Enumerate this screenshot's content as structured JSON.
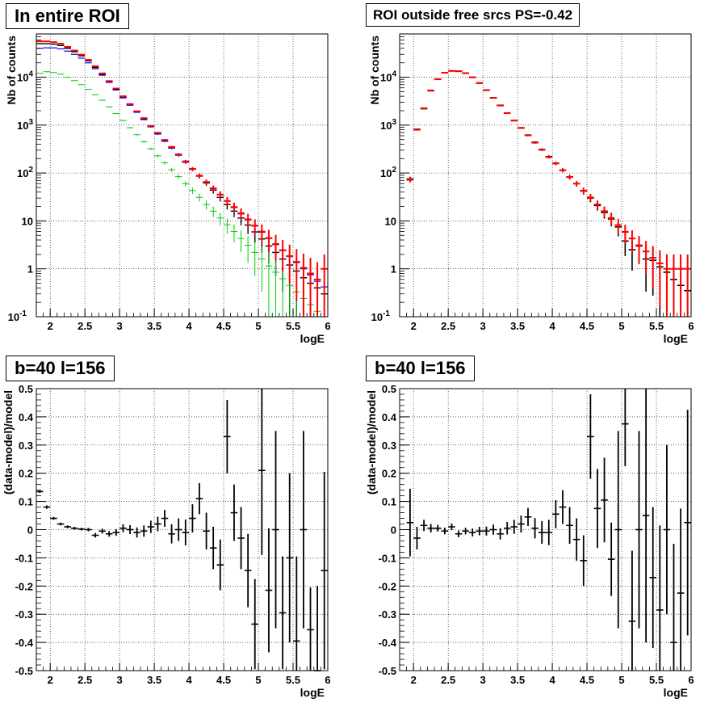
{
  "chart_data": [
    {
      "type": "scatter",
      "title": "In entire ROI",
      "xlabel": "logE",
      "ylabel": "Nb of counts",
      "xlim": [
        1.8,
        6.0
      ],
      "ylim": [
        0.1,
        80000
      ],
      "yscale": "log",
      "grid": true,
      "x_ticks": [
        "2",
        "2.5",
        "3",
        "3.5",
        "4",
        "4.5",
        "5",
        "5.5",
        "6"
      ],
      "y_ticks": [
        "10^-1",
        "1",
        "10",
        "10^2",
        "10^3",
        "10^4"
      ],
      "colors": {
        "data": "#000000",
        "model": "#ff0000",
        "blue": "#0000ff",
        "green": "#00cc00"
      },
      "x": [
        1.85,
        1.95,
        2.05,
        2.15,
        2.25,
        2.35,
        2.45,
        2.55,
        2.65,
        2.75,
        2.85,
        2.95,
        3.05,
        3.15,
        3.25,
        3.35,
        3.45,
        3.55,
        3.65,
        3.75,
        3.85,
        3.95,
        4.05,
        4.15,
        4.25,
        4.35,
        4.45,
        4.55,
        4.65,
        4.75,
        4.85,
        4.95,
        5.05,
        5.15,
        5.25,
        5.35,
        5.45,
        5.55,
        5.65,
        5.75,
        5.85,
        5.95
      ],
      "series": [
        {
          "values": [
            50000,
            50000,
            49000,
            46000,
            40000,
            34000,
            28000,
            22000,
            16000,
            11500,
            8000,
            5600,
            3900,
            2700,
            1900,
            1350,
            950,
            680,
            480,
            340,
            240,
            170,
            120,
            86,
            62,
            44,
            31,
            22,
            16,
            11.5,
            8.2,
            5.9,
            4.2,
            3.0,
            2.2,
            1.6,
            1.2,
            0.9,
            0.65,
            0.5,
            0.4,
            0.3
          ]
        },
        {
          "values": [
            40000,
            41000,
            41000,
            39000,
            35000,
            30000,
            25000,
            20000,
            15000,
            11000,
            7800,
            5400,
            3700,
            2600,
            1850,
            1300,
            920,
            650,
            460,
            330,
            235,
            168,
            120,
            87,
            64,
            47,
            35,
            26,
            19,
            14,
            10.5,
            7.8,
            5.8,
            4.3,
            3.2,
            2.4,
            1.8,
            1.35,
            1.0,
            0.75,
            0.55,
            0.42
          ]
        },
        {
          "values": [
            12000,
            13000,
            12500,
            11500,
            10000,
            8500,
            7000,
            5600,
            4300,
            3300,
            2400,
            1750,
            1250,
            880,
            630,
            450,
            320,
            228,
            163,
            117,
            84,
            60,
            43,
            31,
            22,
            16,
            11.5,
            8.3,
            6.0,
            4.3,
            3.1,
            2.2,
            1.6,
            1.15,
            0.85,
            0.62,
            0.45,
            0.33,
            0.24,
            0.18,
            0.13,
            0.1
          ]
        },
        {
          "values": [
            56000,
            56000,
            54000,
            50000,
            43000,
            36000,
            29500,
            23000,
            17000,
            12000,
            8300,
            5800,
            4000,
            2750,
            1950,
            1400,
            960,
            690,
            490,
            350,
            245,
            175,
            122,
            88,
            65,
            48,
            35.5,
            26,
            19.5,
            14.5,
            10.8,
            8.0,
            6.0,
            4.4,
            3.3,
            2.45,
            1.85,
            1.4,
            1.05,
            0.8,
            0.6,
            1.0
          ]
        }
      ]
    },
    {
      "type": "scatter",
      "title": "ROI outside free srcs PS=-0.42",
      "xlabel": "logE",
      "ylabel": "Nb of counts",
      "xlim": [
        1.8,
        6.0
      ],
      "ylim": [
        0.1,
        80000
      ],
      "yscale": "log",
      "grid": true,
      "x_ticks": [
        "2",
        "2.5",
        "3",
        "3.5",
        "4",
        "4.5",
        "5",
        "5.5",
        "6"
      ],
      "y_ticks": [
        "10^-1",
        "1",
        "10",
        "10^2",
        "10^3",
        "10^4"
      ],
      "colors": {
        "data": "#000000",
        "model": "#ff0000"
      },
      "x": [
        1.95,
        2.05,
        2.15,
        2.25,
        2.35,
        2.45,
        2.55,
        2.65,
        2.75,
        2.85,
        2.95,
        3.05,
        3.15,
        3.25,
        3.35,
        3.45,
        3.55,
        3.65,
        3.75,
        3.85,
        3.95,
        4.05,
        4.15,
        4.25,
        4.35,
        4.45,
        4.55,
        4.65,
        4.75,
        4.85,
        4.95,
        5.05,
        5.15,
        5.25,
        5.35,
        5.45,
        5.55,
        5.65,
        5.75,
        5.85,
        5.95
      ],
      "series": [
        {
          "values": [
            75,
            820,
            2200,
            5200,
            9000,
            12300,
            13600,
            13400,
            12200,
            10000,
            7600,
            5400,
            3750,
            2600,
            1800,
            1250,
            880,
            620,
            440,
            310,
            220,
            160,
            115,
            82,
            60,
            42,
            30,
            21,
            15,
            11,
            7.5,
            3.8,
            2.5,
            3.0,
            1.6,
            1.5,
            1.1,
            0.85,
            0.6,
            0.45,
            0.35
          ]
        },
        {
          "values": [
            72,
            800,
            2250,
            5300,
            9100,
            12400,
            13500,
            13300,
            12100,
            9900,
            7500,
            5350,
            3700,
            2560,
            1780,
            1240,
            870,
            610,
            430,
            305,
            215,
            158,
            114,
            83,
            60,
            43,
            31,
            22,
            16,
            11.5,
            8.2,
            5.9,
            4.3,
            3.1,
            2.3,
            1.7,
            1.3,
            1.0,
            1.0,
            1.0,
            1.0
          ]
        }
      ]
    },
    {
      "type": "scatter",
      "title": "b=40 l=156",
      "xlabel": "logE",
      "ylabel": "(data-model)/model",
      "xlim": [
        1.8,
        6.0
      ],
      "ylim": [
        -0.5,
        0.5
      ],
      "grid": true,
      "x_ticks": [
        "2",
        "2.5",
        "3",
        "3.5",
        "4",
        "4.5",
        "5",
        "5.5",
        "6"
      ],
      "y_ticks": [
        "-0.5",
        "-0.4",
        "-0.3",
        "-0.2",
        "-0.1",
        "0",
        "0.1",
        "0.2",
        "0.3",
        "0.4",
        "0.5"
      ],
      "colors": {
        "data": "#000000"
      },
      "x": [
        1.85,
        1.95,
        2.05,
        2.15,
        2.25,
        2.35,
        2.45,
        2.55,
        2.65,
        2.75,
        2.85,
        2.95,
        3.05,
        3.15,
        3.25,
        3.35,
        3.45,
        3.55,
        3.65,
        3.75,
        3.85,
        3.95,
        4.05,
        4.15,
        4.25,
        4.35,
        4.45,
        4.55,
        4.65,
        4.75,
        4.85,
        4.95,
        5.05,
        5.15,
        5.25,
        5.35,
        5.45,
        5.55,
        5.65,
        5.75,
        5.85,
        5.95
      ],
      "values": [
        0.135,
        0.08,
        0.04,
        0.02,
        0.01,
        0.005,
        0.002,
        0.0,
        -0.02,
        -0.005,
        -0.015,
        -0.01,
        0.005,
        0.0,
        -0.01,
        -0.005,
        0.01,
        0.02,
        0.04,
        -0.015,
        0.0,
        -0.01,
        0.04,
        0.11,
        -0.005,
        -0.065,
        -0.125,
        0.33,
        0.06,
        -0.03,
        -0.145,
        -0.335,
        0.21,
        -0.215,
        0.0,
        -0.295,
        -0.1,
        -0.395,
        0.0,
        -0.355,
        -0.5,
        -0.145
      ],
      "errors": [
        0.005,
        0.006,
        0.005,
        0.005,
        0.005,
        0.005,
        0.005,
        0.006,
        0.008,
        0.009,
        0.01,
        0.012,
        0.014,
        0.016,
        0.018,
        0.02,
        0.022,
        0.026,
        0.03,
        0.034,
        0.04,
        0.046,
        0.05,
        0.055,
        0.065,
        0.075,
        0.09,
        0.13,
        0.1,
        0.11,
        0.13,
        0.16,
        0.3,
        0.22,
        0.35,
        0.2,
        0.3,
        0.3,
        0.35,
        0.15,
        0.3,
        0.35
      ]
    },
    {
      "type": "scatter",
      "title": "b=40 l=156",
      "xlabel": "logE",
      "ylabel": "(data-model)/model",
      "xlim": [
        1.8,
        6.0
      ],
      "ylim": [
        -0.5,
        0.5
      ],
      "grid": true,
      "x_ticks": [
        "2",
        "2.5",
        "3",
        "3.5",
        "4",
        "4.5",
        "5",
        "5.5",
        "6"
      ],
      "y_ticks": [
        "-0.5",
        "-0.4",
        "-0.3",
        "-0.2",
        "-0.1",
        "0",
        "0.1",
        "0.2",
        "0.3",
        "0.4",
        "0.5"
      ],
      "colors": {
        "data": "#000000"
      },
      "x": [
        1.95,
        2.05,
        2.15,
        2.25,
        2.35,
        2.45,
        2.55,
        2.65,
        2.75,
        2.85,
        2.95,
        3.05,
        3.15,
        3.25,
        3.35,
        3.45,
        3.55,
        3.65,
        3.75,
        3.85,
        3.95,
        4.05,
        4.15,
        4.25,
        4.35,
        4.45,
        4.55,
        4.65,
        4.75,
        4.85,
        4.95,
        5.05,
        5.15,
        5.25,
        5.35,
        5.45,
        5.55,
        5.65,
        5.75,
        5.85,
        5.95
      ],
      "values": [
        0.025,
        -0.03,
        0.015,
        0.005,
        0.005,
        -0.005,
        0.01,
        -0.015,
        -0.005,
        -0.01,
        -0.005,
        -0.005,
        0.0,
        -0.015,
        0.005,
        0.01,
        0.02,
        0.045,
        0.005,
        -0.01,
        -0.01,
        0.055,
        0.08,
        0.015,
        -0.035,
        -0.11,
        0.33,
        0.075,
        0.105,
        -0.105,
        0.0,
        0.375,
        -0.325,
        0.0,
        0.05,
        -0.17,
        -0.285,
        0.0,
        -0.4,
        -0.225,
        0.025
      ],
      "errors": [
        0.12,
        0.04,
        0.02,
        0.015,
        0.012,
        0.012,
        0.012,
        0.012,
        0.012,
        0.014,
        0.015,
        0.016,
        0.018,
        0.02,
        0.022,
        0.025,
        0.03,
        0.032,
        0.036,
        0.04,
        0.045,
        0.05,
        0.06,
        0.065,
        0.075,
        0.09,
        0.15,
        0.14,
        0.15,
        0.13,
        0.35,
        0.15,
        0.25,
        0.35,
        0.45,
        0.25,
        0.3,
        0.3,
        0.35,
        0.3,
        0.4
      ]
    }
  ]
}
